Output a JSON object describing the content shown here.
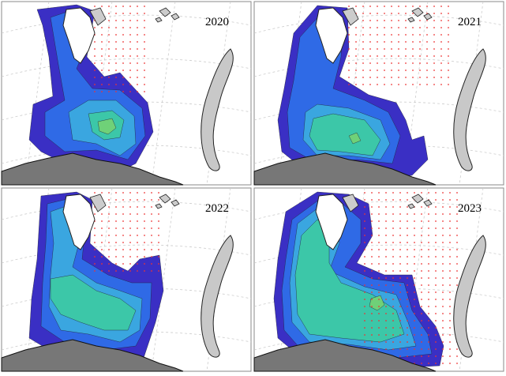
{
  "panels": [
    {
      "label": "2020"
    },
    {
      "label": "2021"
    },
    {
      "label": "2022"
    },
    {
      "label": "2023"
    }
  ]
}
